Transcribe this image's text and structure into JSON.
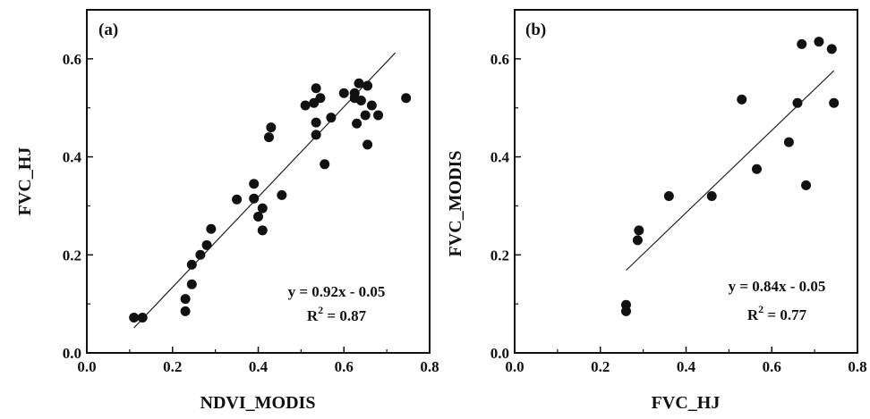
{
  "chart_data": [
    {
      "type": "scatter",
      "panel_label": "(a)",
      "xlabel": "NDVI_MODIS",
      "ylabel": "FVC_HJ",
      "xlim": [
        0.0,
        0.8
      ],
      "ylim": [
        0.0,
        0.7
      ],
      "xticks": [
        "0.0",
        "0.2",
        "0.4",
        "0.6",
        "0.8"
      ],
      "yticks": [
        "0.0",
        "0.2",
        "0.4",
        "0.6"
      ],
      "xtick_values": [
        0.0,
        0.2,
        0.4,
        0.6,
        0.8
      ],
      "ytick_values": [
        0.0,
        0.2,
        0.4,
        0.6
      ],
      "grid": false,
      "marker_color": "#111111",
      "points": [
        [
          0.11,
          0.072
        ],
        [
          0.13,
          0.072
        ],
        [
          0.23,
          0.085
        ],
        [
          0.23,
          0.11
        ],
        [
          0.245,
          0.14
        ],
        [
          0.245,
          0.18
        ],
        [
          0.265,
          0.2
        ],
        [
          0.28,
          0.22
        ],
        [
          0.29,
          0.253
        ],
        [
          0.35,
          0.313
        ],
        [
          0.39,
          0.345
        ],
        [
          0.39,
          0.315
        ],
        [
          0.4,
          0.278
        ],
        [
          0.41,
          0.295
        ],
        [
          0.41,
          0.25
        ],
        [
          0.425,
          0.44
        ],
        [
          0.43,
          0.46
        ],
        [
          0.455,
          0.322
        ],
        [
          0.51,
          0.505
        ],
        [
          0.53,
          0.51
        ],
        [
          0.535,
          0.54
        ],
        [
          0.535,
          0.47
        ],
        [
          0.535,
          0.445
        ],
        [
          0.545,
          0.52
        ],
        [
          0.555,
          0.385
        ],
        [
          0.57,
          0.48
        ],
        [
          0.6,
          0.53
        ],
        [
          0.625,
          0.53
        ],
        [
          0.625,
          0.52
        ],
        [
          0.63,
          0.468
        ],
        [
          0.635,
          0.55
        ],
        [
          0.64,
          0.515
        ],
        [
          0.65,
          0.485
        ],
        [
          0.655,
          0.545
        ],
        [
          0.655,
          0.425
        ],
        [
          0.665,
          0.505
        ],
        [
          0.68,
          0.485
        ],
        [
          0.745,
          0.52
        ]
      ],
      "fit_line": {
        "slope": 0.92,
        "intercept": -0.05,
        "x_range": [
          0.11,
          0.72
        ]
      },
      "annotations": {
        "equation": "y = 0.92x - 0.05",
        "r2_prefix": "R",
        "r2_exp": "2",
        "r2_value": " = 0.87"
      }
    },
    {
      "type": "scatter",
      "panel_label": "(b)",
      "xlabel": "FVC_HJ",
      "ylabel": "FVC_MODIS",
      "xlim": [
        0.0,
        0.8
      ],
      "ylim": [
        0.0,
        0.7
      ],
      "xticks": [
        "0.0",
        "0.2",
        "0.4",
        "0.6",
        "0.8"
      ],
      "yticks": [
        "0.0",
        "0.2",
        "0.4",
        "0.6"
      ],
      "xtick_values": [
        0.0,
        0.2,
        0.4,
        0.6,
        0.8
      ],
      "ytick_values": [
        0.0,
        0.2,
        0.4,
        0.6
      ],
      "grid": false,
      "marker_color": "#111111",
      "points": [
        [
          0.26,
          0.098
        ],
        [
          0.26,
          0.085
        ],
        [
          0.287,
          0.23
        ],
        [
          0.29,
          0.25
        ],
        [
          0.36,
          0.32
        ],
        [
          0.46,
          0.32
        ],
        [
          0.53,
          0.517
        ],
        [
          0.565,
          0.375
        ],
        [
          0.64,
          0.43
        ],
        [
          0.66,
          0.51
        ],
        [
          0.67,
          0.63
        ],
        [
          0.68,
          0.342
        ],
        [
          0.71,
          0.635
        ],
        [
          0.74,
          0.62
        ],
        [
          0.745,
          0.51
        ]
      ],
      "fit_line": {
        "slope": 0.84,
        "intercept": -0.05,
        "x_range": [
          0.26,
          0.745
        ]
      },
      "annotations": {
        "equation": "y = 0.84x - 0.05",
        "r2_prefix": "R",
        "r2_exp": "2",
        "r2_value": " = 0.77"
      }
    }
  ]
}
